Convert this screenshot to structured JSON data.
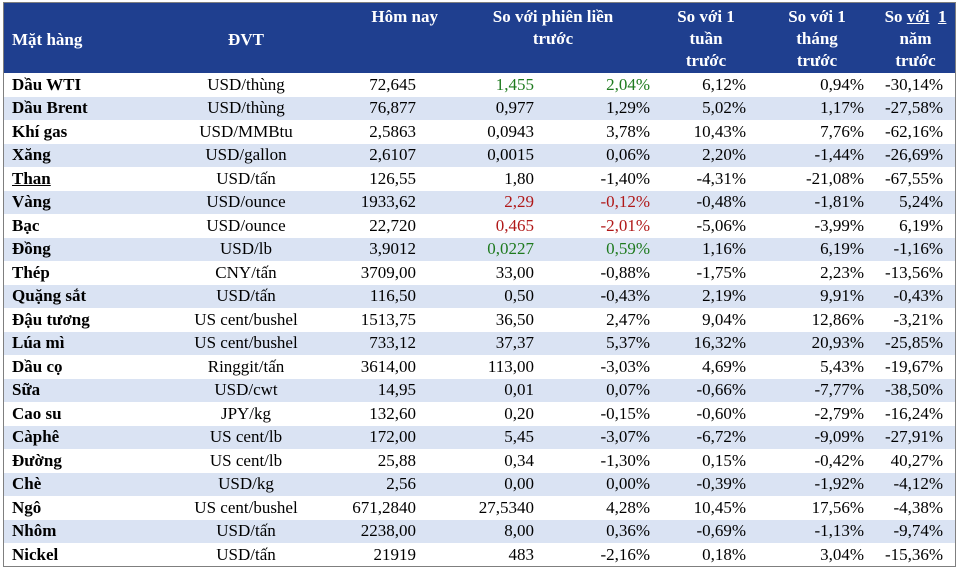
{
  "headers": {
    "name": "Mặt hàng",
    "unit": "ĐVT",
    "today": "Hôm nay",
    "prev_session_line1": "So với phiên liền",
    "prev_session_line2": "trước",
    "week_line1": "So với 1",
    "week_line2": "tuần",
    "week_line3": "trước",
    "month_line1": "So với 1",
    "month_line2": "tháng",
    "month_line3": "trước",
    "year_line1_a": "So",
    "year_line1_b": "với",
    "year_line1_c": "1",
    "year_line2": "năm",
    "year_line3": "trước"
  },
  "colors": {
    "header_bg": "#1f3f8f",
    "stripe_bg": "#dae3f3",
    "up": "#1e7a1e",
    "down": "#b01818"
  },
  "rows": [
    {
      "name": "Dầu WTI",
      "unit": "USD/thùng",
      "today": "72,645",
      "chg": "1,455",
      "pct": "2,04%",
      "week": "6,12%",
      "month": "0,94%",
      "year": "-30,14%",
      "tone": "green"
    },
    {
      "name": "Dầu Brent",
      "unit": "USD/thùng",
      "today": "76,877",
      "chg": "0,977",
      "pct": "1,29%",
      "week": "5,02%",
      "month": "1,17%",
      "year": "-27,58%",
      "tone": ""
    },
    {
      "name": "Khí gas",
      "unit": "USD/MMBtu",
      "today": "2,5863",
      "chg": "0,0943",
      "pct": "3,78%",
      "week": "10,43%",
      "month": "7,76%",
      "year": "-62,16%",
      "tone": ""
    },
    {
      "name": "Xăng",
      "unit": "USD/gallon",
      "today": "2,6107",
      "chg": "0,0015",
      "pct": "0,06%",
      "week": "2,20%",
      "month": "-1,44%",
      "year": "-26,69%",
      "tone": ""
    },
    {
      "name": "Than",
      "unit": "USD/tấn",
      "today": "126,55",
      "chg": "1,80",
      "pct": "-1,40%",
      "week": "-4,31%",
      "month": "-21,08%",
      "year": "-67,55%",
      "tone": "",
      "underline": true
    },
    {
      "name": "Vàng",
      "unit": "USD/ounce",
      "today": "1933,62",
      "chg": "2,29",
      "pct": "-0,12%",
      "week": "-0,48%",
      "month": "-1,81%",
      "year": "5,24%",
      "tone": "red"
    },
    {
      "name": "Bạc",
      "unit": "USD/ounce",
      "today": "22,720",
      "chg": "0,465",
      "pct": "-2,01%",
      "week": "-5,06%",
      "month": "-3,99%",
      "year": "6,19%",
      "tone": "red"
    },
    {
      "name": "Đồng",
      "unit": "USD/lb",
      "today": "3,9012",
      "chg": "0,0227",
      "pct": "0,59%",
      "week": "1,16%",
      "month": "6,19%",
      "year": "-1,16%",
      "tone": "green"
    },
    {
      "name": "Thép",
      "unit": "CNY/tấn",
      "today": "3709,00",
      "chg": "33,00",
      "pct": "-0,88%",
      "week": "-1,75%",
      "month": "2,23%",
      "year": "-13,56%",
      "tone": ""
    },
    {
      "name": "Quặng sắt",
      "unit": "USD/tấn",
      "today": "116,50",
      "chg": "0,50",
      "pct": "-0,43%",
      "week": "2,19%",
      "month": "9,91%",
      "year": "-0,43%",
      "tone": ""
    },
    {
      "name": "Đậu tương",
      "unit": "US cent/bushel",
      "today": "1513,75",
      "chg": "36,50",
      "pct": "2,47%",
      "week": "9,04%",
      "month": "12,86%",
      "year": "-3,21%",
      "tone": ""
    },
    {
      "name": "Lúa mì",
      "unit": "US cent/bushel",
      "today": "733,12",
      "chg": "37,37",
      "pct": "5,37%",
      "week": "16,32%",
      "month": "20,93%",
      "year": "-25,85%",
      "tone": ""
    },
    {
      "name": "Dầu cọ",
      "unit": "Ringgit/tấn",
      "today": "3614,00",
      "chg": "113,00",
      "pct": "-3,03%",
      "week": "4,69%",
      "month": "5,43%",
      "year": "-19,67%",
      "tone": ""
    },
    {
      "name": "Sữa",
      "unit": "USD/cwt",
      "today": "14,95",
      "chg": "0,01",
      "pct": "0,07%",
      "week": "-0,66%",
      "month": "-7,77%",
      "year": "-38,50%",
      "tone": ""
    },
    {
      "name": "Cao su",
      "unit": "JPY/kg",
      "today": "132,60",
      "chg": "0,20",
      "pct": "-0,15%",
      "week": "-0,60%",
      "month": "-2,79%",
      "year": "-16,24%",
      "tone": ""
    },
    {
      "name": "Càphê",
      "unit": "US cent/lb",
      "today": "172,00",
      "chg": "5,45",
      "pct": "-3,07%",
      "week": "-6,72%",
      "month": "-9,09%",
      "year": "-27,91%",
      "tone": ""
    },
    {
      "name": "Đường",
      "unit": "US cent/lb",
      "today": "25,88",
      "chg": "0,34",
      "pct": "-1,30%",
      "week": "0,15%",
      "month": "-0,42%",
      "year": "40,27%",
      "tone": ""
    },
    {
      "name": "Chè",
      "unit": "USD/kg",
      "today": "2,56",
      "chg": "0,00",
      "pct": "0,00%",
      "week": "-0,39%",
      "month": "-1,92%",
      "year": "-4,12%",
      "tone": ""
    },
    {
      "name": "Ngô",
      "unit": "US cent/bushel",
      "today": "671,2840",
      "chg": "27,5340",
      "pct": "4,28%",
      "week": "10,45%",
      "month": "17,56%",
      "year": "-4,38%",
      "tone": ""
    },
    {
      "name": "Nhôm",
      "unit": "USD/tấn",
      "today": "2238,00",
      "chg": "8,00",
      "pct": "0,36%",
      "week": "-0,69%",
      "month": "-1,13%",
      "year": "-9,74%",
      "tone": ""
    },
    {
      "name": "Nickel",
      "unit": "USD/tấn",
      "today": "21919",
      "chg": "483",
      "pct": "-2,16%",
      "week": "0,18%",
      "month": "3,04%",
      "year": "-15,36%",
      "tone": ""
    }
  ]
}
